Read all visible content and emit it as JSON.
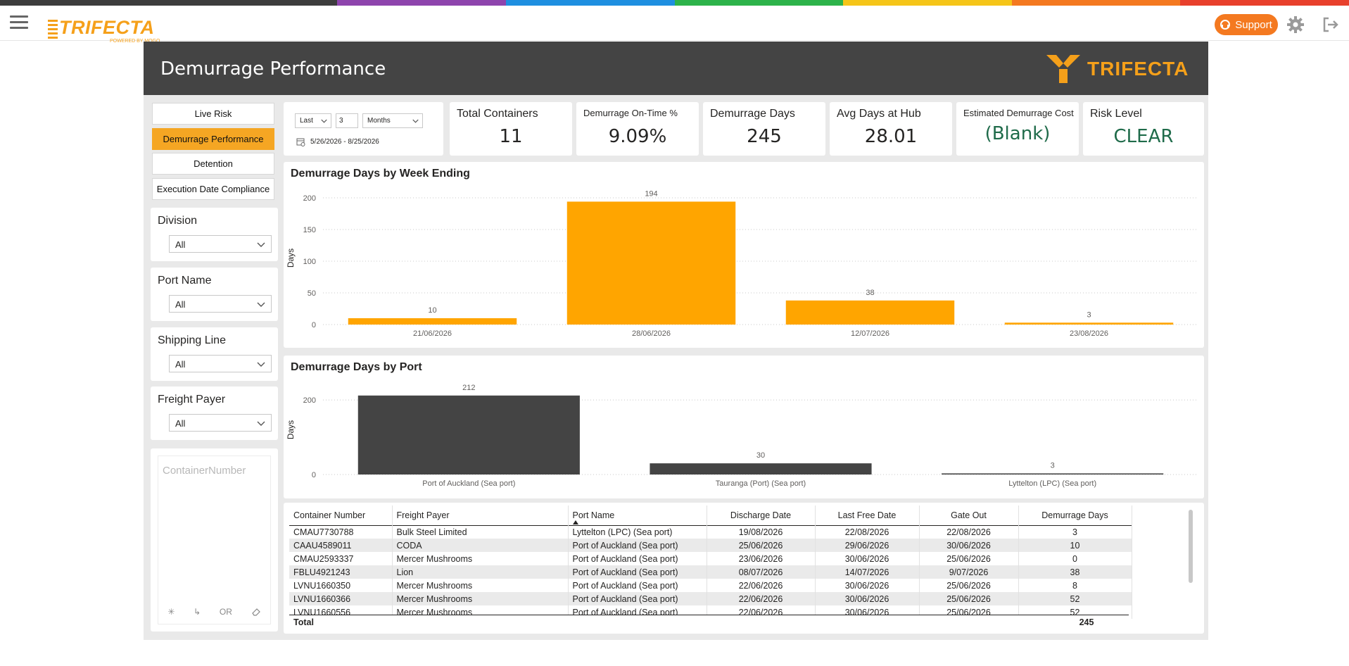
{
  "topbar": {
    "brand_name": "TRIFECTA",
    "brand_tagline": "POWERED BY MOGO",
    "support_label": "Support",
    "rainbow_colors": [
      "#3d3d3d",
      "#3d3d3d",
      "#8e44ad",
      "#1e8fe0",
      "#2db34a",
      "#f5c518",
      "#f47920",
      "#e8402c"
    ]
  },
  "report": {
    "title": "Demurrage Performance",
    "logo_text": "TRIFECTA"
  },
  "nav": [
    {
      "label": "Live Risk",
      "active": false
    },
    {
      "label": "Demurrage Performance",
      "active": true
    },
    {
      "label": "Detention",
      "active": false
    },
    {
      "label": "Execution Date Compliance",
      "active": false
    }
  ],
  "slicers": [
    {
      "title": "Division",
      "value": "All"
    },
    {
      "title": "Port Name",
      "value": "All"
    },
    {
      "title": "Shipping Line",
      "value": "All"
    },
    {
      "title": "Freight Payer",
      "value": "All"
    }
  ],
  "container_search": {
    "placeholder": "ContainerNumber",
    "footer_or": "OR"
  },
  "date_filter": {
    "mode": "Last",
    "count": "3",
    "unit": "Months",
    "range": "5/26/2026 - 8/25/2026"
  },
  "kpis": [
    {
      "label": "Total Containers",
      "value": "11",
      "color": "#252423"
    },
    {
      "label": "Demurrage On-Time %",
      "value": "9.09%",
      "color": "#252423"
    },
    {
      "label": "Demurrage Days",
      "value": "245",
      "color": "#252423"
    },
    {
      "label": "Avg Days at Hub",
      "value": "28.01",
      "color": "#252423"
    },
    {
      "label": "Estimated Demurrage Cost",
      "value": "(Blank)",
      "color": "#1f6b4a"
    },
    {
      "label": "Risk Level",
      "value": "CLEAR",
      "color": "#1f6b4a"
    }
  ],
  "chart_data": [
    {
      "type": "bar",
      "title": "Demurrage Days by Week Ending",
      "ylabel": "Days",
      "categories": [
        "21/06/2026",
        "28/06/2026",
        "12/07/2026",
        "23/08/2026"
      ],
      "values": [
        10,
        194,
        38,
        3
      ],
      "yticks": [
        0,
        50,
        100,
        150,
        200
      ],
      "ylim": [
        0,
        210
      ],
      "color": "#ffa500",
      "grid": true
    },
    {
      "type": "bar",
      "title": "Demurrage Days by Port",
      "ylabel": "Days",
      "categories": [
        "Port of Auckland (Sea port)",
        "Tauranga (Port) (Sea port)",
        "Lyttelton (LPC) (Sea port)"
      ],
      "values": [
        212,
        30,
        3
      ],
      "yticks": [
        0,
        200
      ],
      "ylim": [
        0,
        240
      ],
      "color": "#444444",
      "grid": true
    }
  ],
  "table": {
    "columns": [
      "Container Number",
      "Freight Payer",
      "Port Name",
      "Discharge Date",
      "Last Free Date",
      "Gate Out",
      "Demurrage Days"
    ],
    "rows": [
      [
        "CMAU7730788",
        "Bulk Steel Limited",
        "Lyttelton (LPC) (Sea port)",
        "19/08/2026",
        "22/08/2026",
        "22/08/2026",
        "3"
      ],
      [
        "CAAU4589011",
        "CODA",
        "Port of Auckland (Sea port)",
        "25/06/2026",
        "29/06/2026",
        "30/06/2026",
        "10"
      ],
      [
        "CMAU2593337",
        "Mercer Mushrooms",
        "Port of Auckland (Sea port)",
        "23/06/2026",
        "30/06/2026",
        "25/06/2026",
        "0"
      ],
      [
        "FBLU4921243",
        "Lion",
        "Port of Auckland (Sea port)",
        "08/07/2026",
        "14/07/2026",
        "9/07/2026",
        "38"
      ],
      [
        "LVNU1660350",
        "Mercer Mushrooms",
        "Port of Auckland (Sea port)",
        "22/06/2026",
        "30/06/2026",
        "25/06/2026",
        "8"
      ],
      [
        "LVNU1660366",
        "Mercer Mushrooms",
        "Port of Auckland (Sea port)",
        "22/06/2026",
        "30/06/2026",
        "25/06/2026",
        "52"
      ],
      [
        "LVNU1660556",
        "Mercer Mushrooms",
        "Port of Auckland (Sea port)",
        "22/06/2026",
        "30/06/2026",
        "25/06/2026",
        "52"
      ]
    ],
    "total_label": "Total",
    "total_value": "245"
  }
}
